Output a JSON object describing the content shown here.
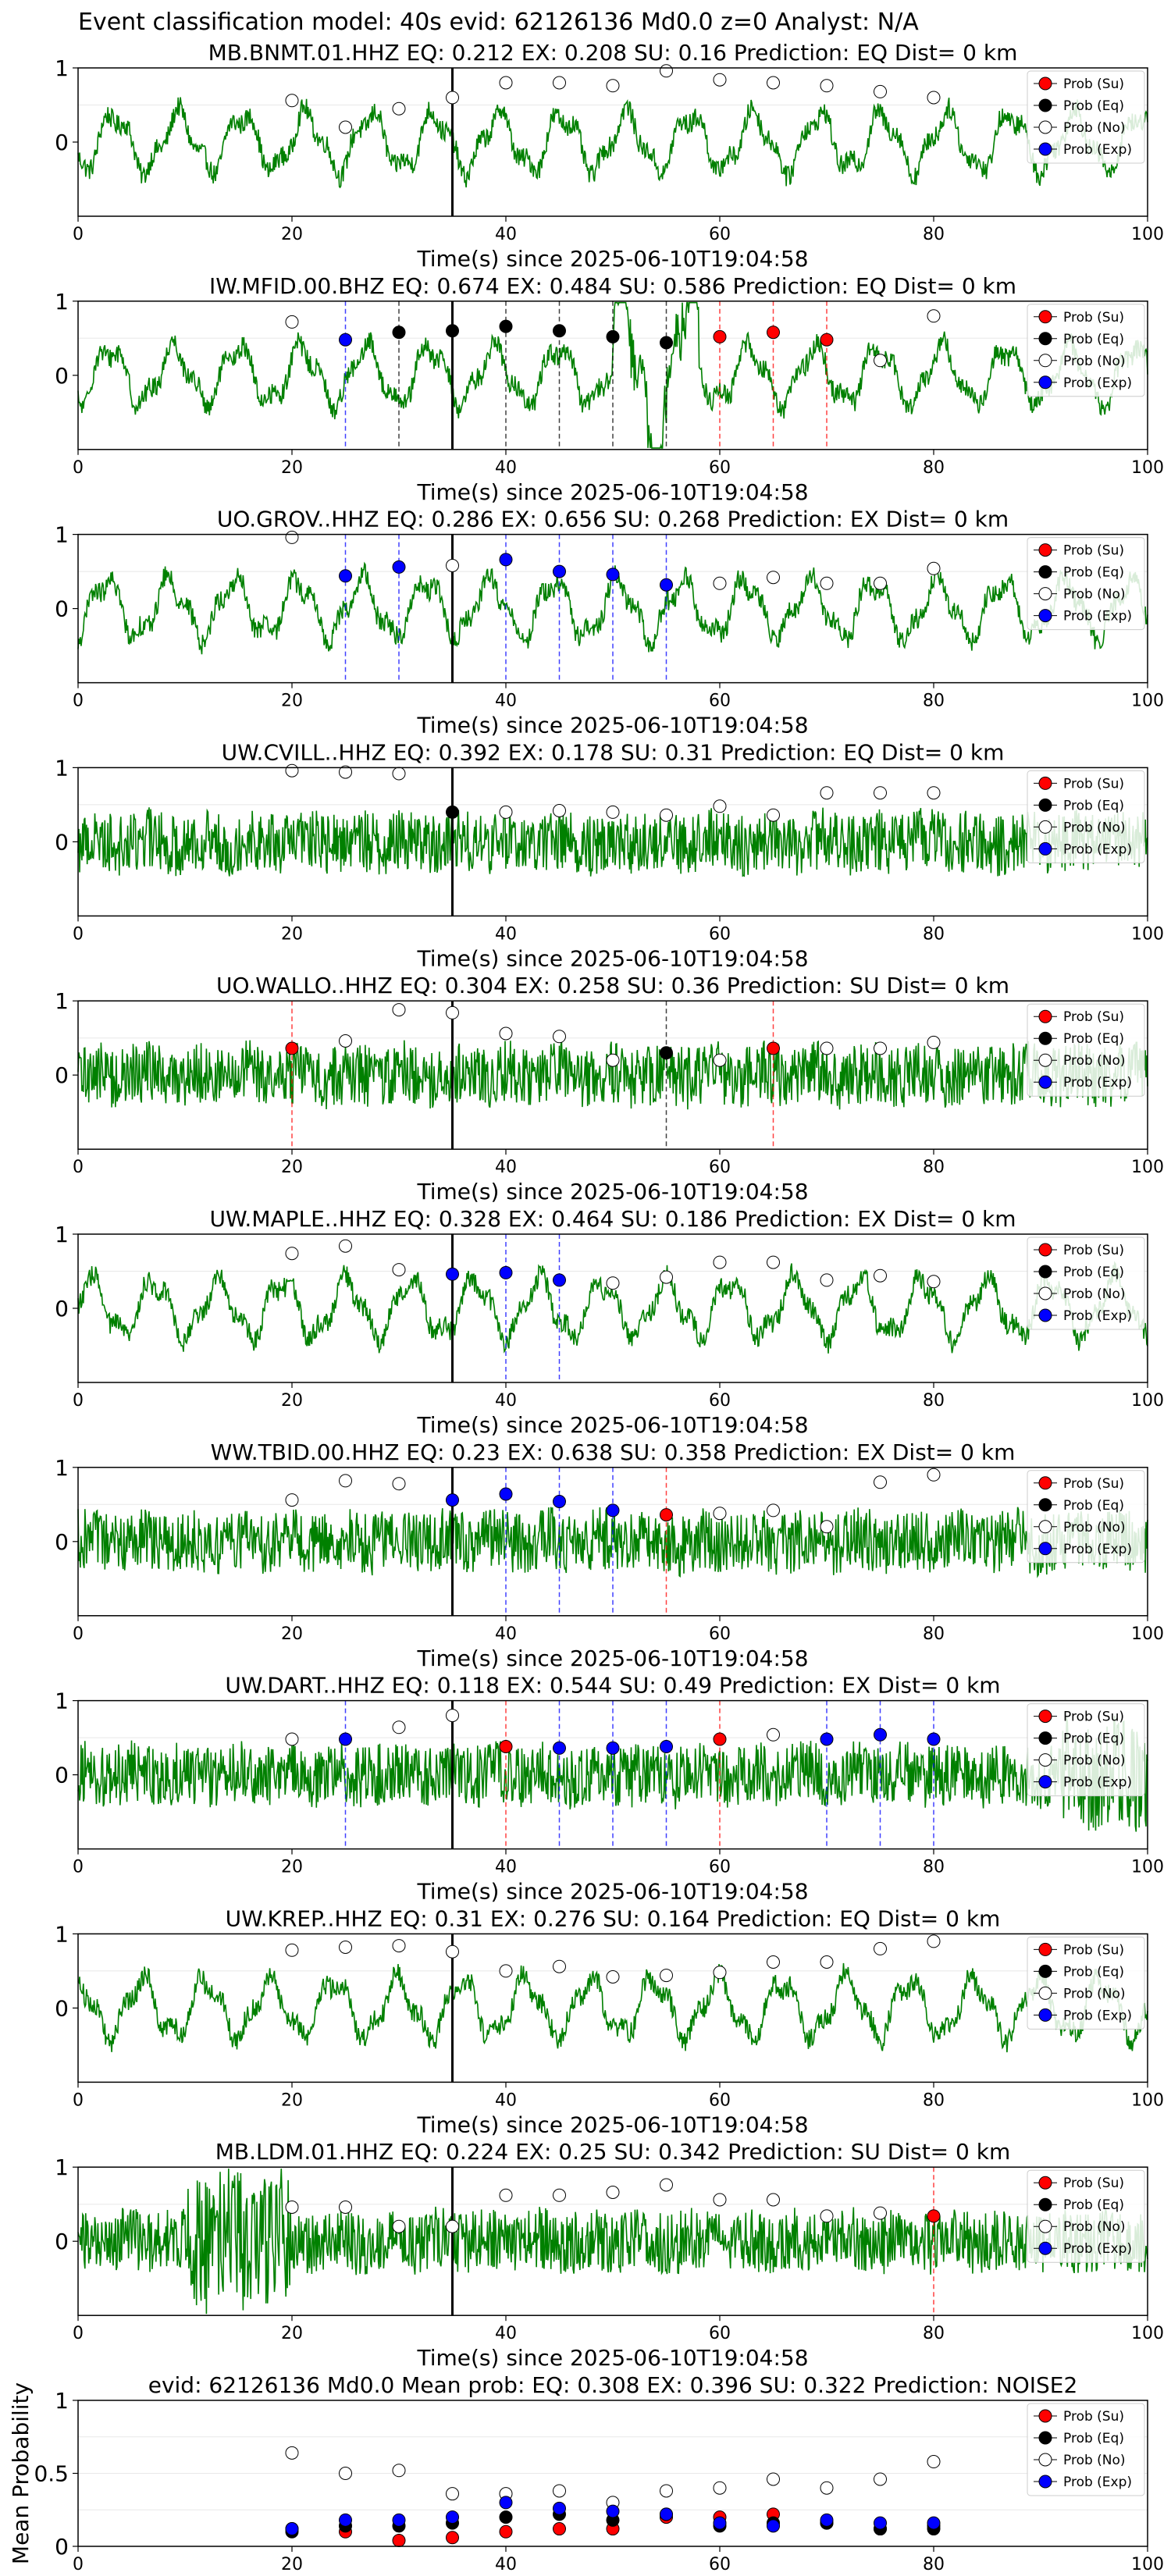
{
  "suptitle": "Event classification model: 40s evid: 62126136 Md0.0 z=0 Analyst: N/A",
  "colors": {
    "waveform": "#008000",
    "prob_su": "#ff0000",
    "prob_eq": "#000000",
    "prob_no": "#ffffff",
    "prob_exp": "#0000ff",
    "event_line": "#000000"
  },
  "legend": [
    "Prob (Su)",
    "Prob (Eq)",
    "Prob (No)",
    "Prob (Exp)"
  ],
  "chart_data": [
    {
      "type": "line",
      "title": "MB.BNMT.01.HHZ   EQ: 0.212  EX: 0.208  SU: 0.16   Prediction: EQ    Dist= 0 km",
      "xlabel": "Time(s) since 2025-06-10T19:04:58",
      "xlim": [
        0,
        100
      ],
      "ylim": [
        -1,
        1
      ],
      "xticks": [
        0,
        20,
        40,
        60,
        80,
        100
      ],
      "yticks": [
        0,
        1
      ],
      "grid": true,
      "legend_position": "top-right",
      "waveform": "green-waveform",
      "event_line_x": 35,
      "markers": {
        "x": [
          20,
          25,
          30,
          35,
          40,
          45,
          50,
          55,
          60,
          65,
          70,
          75,
          80
        ],
        "class": [
          "No",
          "No",
          "No",
          "No",
          "No",
          "No",
          "No",
          "No",
          "No",
          "No",
          "No",
          "No",
          "No"
        ],
        "y": [
          0.56,
          0.2,
          0.45,
          0.6,
          0.8,
          0.8,
          0.76,
          0.96,
          0.84,
          0.8,
          0.76,
          0.68,
          0.6
        ]
      },
      "dashed_lines": []
    },
    {
      "type": "line",
      "title": "IW.MFID.00.BHZ   EQ: 0.674  EX: 0.484  SU: 0.586   Prediction: EQ    Dist= 0 km",
      "xlabel": "Time(s) since 2025-06-10T19:04:58",
      "xlim": [
        0,
        100
      ],
      "ylim": [
        -1,
        1
      ],
      "xticks": [
        0,
        20,
        40,
        60,
        80,
        100
      ],
      "yticks": [
        0,
        1
      ],
      "grid": true,
      "legend_position": "top-right",
      "waveform": "green-waveform",
      "event_line_x": 35,
      "markers": {
        "x": [
          20,
          25,
          30,
          35,
          40,
          45,
          50,
          55,
          60,
          65,
          70,
          75,
          80
        ],
        "class": [
          "No",
          "Exp",
          "Eq",
          "Eq",
          "Eq",
          "Eq",
          "Eq",
          "Eq",
          "Su",
          "Su",
          "Su",
          "No",
          "No"
        ],
        "y": [
          0.72,
          0.48,
          0.58,
          0.6,
          0.66,
          0.6,
          0.52,
          0.44,
          0.52,
          0.58,
          0.48,
          0.2,
          0.8
        ]
      },
      "dashed_lines": [
        {
          "x": 25,
          "class": "Exp"
        },
        {
          "x": 30,
          "class": "Eq"
        },
        {
          "x": 40,
          "class": "Eq"
        },
        {
          "x": 45,
          "class": "Eq"
        },
        {
          "x": 50,
          "class": "Eq"
        },
        {
          "x": 55,
          "class": "Eq"
        },
        {
          "x": 60,
          "class": "Su"
        },
        {
          "x": 65,
          "class": "Su"
        },
        {
          "x": 70,
          "class": "Su"
        }
      ]
    },
    {
      "type": "line",
      "title": "UO.GROV..HHZ   EQ: 0.286  EX: 0.656  SU: 0.268   Prediction: EX    Dist= 0 km",
      "xlabel": "Time(s) since 2025-06-10T19:04:58",
      "xlim": [
        0,
        100
      ],
      "ylim": [
        -1,
        1
      ],
      "xticks": [
        0,
        20,
        40,
        60,
        80,
        100
      ],
      "yticks": [
        0,
        1
      ],
      "grid": true,
      "legend_position": "top-right",
      "waveform": "green-waveform",
      "event_line_x": 35,
      "markers": {
        "x": [
          20,
          25,
          30,
          35,
          40,
          45,
          50,
          55,
          60,
          65,
          70,
          75,
          80
        ],
        "class": [
          "No",
          "Exp",
          "Exp",
          "No",
          "Exp",
          "Exp",
          "Exp",
          "Exp",
          "No",
          "No",
          "No",
          "No",
          "No"
        ],
        "y": [
          0.96,
          0.44,
          0.56,
          0.58,
          0.66,
          0.5,
          0.46,
          0.32,
          0.34,
          0.42,
          0.34,
          0.34,
          0.54
        ]
      },
      "dashed_lines": [
        {
          "x": 25,
          "class": "Exp"
        },
        {
          "x": 30,
          "class": "Exp"
        },
        {
          "x": 40,
          "class": "Exp"
        },
        {
          "x": 45,
          "class": "Exp"
        },
        {
          "x": 50,
          "class": "Exp"
        },
        {
          "x": 55,
          "class": "Exp"
        }
      ]
    },
    {
      "type": "line",
      "title": "UW.CVILL..HHZ   EQ: 0.392  EX: 0.178  SU: 0.31   Prediction: EQ    Dist= 0 km",
      "xlabel": "Time(s) since 2025-06-10T19:04:58",
      "xlim": [
        0,
        100
      ],
      "ylim": [
        -1,
        1
      ],
      "xticks": [
        0,
        20,
        40,
        60,
        80,
        100
      ],
      "yticks": [
        0,
        1
      ],
      "grid": true,
      "legend_position": "top-right",
      "waveform": "green-waveform",
      "event_line_x": 35,
      "markers": {
        "x": [
          20,
          25,
          30,
          35,
          40,
          45,
          50,
          55,
          60,
          65,
          70,
          75,
          80
        ],
        "class": [
          "No",
          "No",
          "No",
          "Eq",
          "No",
          "No",
          "No",
          "No",
          "No",
          "No",
          "No",
          "No",
          "No"
        ],
        "y": [
          0.96,
          0.94,
          0.92,
          0.4,
          0.4,
          0.42,
          0.4,
          0.36,
          0.48,
          0.36,
          0.66,
          0.66,
          0.66
        ]
      },
      "dashed_lines": []
    },
    {
      "type": "line",
      "title": "UO.WALLO..HHZ   EQ: 0.304  EX: 0.258  SU: 0.36   Prediction: SU    Dist= 0 km",
      "xlabel": "Time(s) since 2025-06-10T19:04:58",
      "xlim": [
        0,
        100
      ],
      "ylim": [
        -1,
        1
      ],
      "xticks": [
        0,
        20,
        40,
        60,
        80,
        100
      ],
      "yticks": [
        0,
        1
      ],
      "grid": true,
      "legend_position": "top-right",
      "waveform": "green-waveform",
      "event_line_x": 35,
      "markers": {
        "x": [
          20,
          25,
          30,
          35,
          40,
          45,
          50,
          55,
          60,
          65,
          70,
          75,
          80
        ],
        "class": [
          "Su",
          "No",
          "No",
          "No",
          "No",
          "No",
          "No",
          "Eq",
          "No",
          "Su",
          "No",
          "No",
          "No"
        ],
        "y": [
          0.36,
          0.46,
          0.88,
          0.84,
          0.56,
          0.52,
          0.2,
          0.3,
          0.2,
          0.36,
          0.36,
          0.36,
          0.44
        ]
      },
      "dashed_lines": [
        {
          "x": 20,
          "class": "Su"
        },
        {
          "x": 55,
          "class": "Eq"
        },
        {
          "x": 65,
          "class": "Su"
        }
      ]
    },
    {
      "type": "line",
      "title": "UW.MAPLE..HHZ   EQ: 0.328  EX: 0.464  SU: 0.186   Prediction: EX    Dist= 0 km",
      "xlabel": "Time(s) since 2025-06-10T19:04:58",
      "xlim": [
        0,
        100
      ],
      "ylim": [
        -1,
        1
      ],
      "xticks": [
        0,
        20,
        40,
        60,
        80,
        100
      ],
      "yticks": [
        0,
        1
      ],
      "grid": true,
      "legend_position": "top-right",
      "waveform": "green-waveform",
      "event_line_x": 35,
      "markers": {
        "x": [
          20,
          25,
          30,
          35,
          40,
          45,
          50,
          55,
          60,
          65,
          70,
          75,
          80
        ],
        "class": [
          "No",
          "No",
          "No",
          "Exp",
          "Exp",
          "Exp",
          "No",
          "No",
          "No",
          "No",
          "No",
          "No",
          "No"
        ],
        "y": [
          0.74,
          0.84,
          0.52,
          0.46,
          0.48,
          0.38,
          0.34,
          0.42,
          0.62,
          0.62,
          0.38,
          0.44,
          0.36
        ]
      },
      "dashed_lines": [
        {
          "x": 40,
          "class": "Exp"
        },
        {
          "x": 45,
          "class": "Exp"
        }
      ]
    },
    {
      "type": "line",
      "title": "WW.TBID.00.HHZ   EQ: 0.23  EX: 0.638  SU: 0.358   Prediction: EX    Dist= 0 km",
      "xlabel": "Time(s) since 2025-06-10T19:04:58",
      "xlim": [
        0,
        100
      ],
      "ylim": [
        -1,
        1
      ],
      "xticks": [
        0,
        20,
        40,
        60,
        80,
        100
      ],
      "yticks": [
        0,
        1
      ],
      "grid": true,
      "legend_position": "top-right",
      "waveform": "green-waveform",
      "event_line_x": 35,
      "markers": {
        "x": [
          20,
          25,
          30,
          35,
          40,
          45,
          50,
          55,
          60,
          65,
          70,
          75,
          80
        ],
        "class": [
          "No",
          "No",
          "No",
          "Exp",
          "Exp",
          "Exp",
          "Exp",
          "Su",
          "No",
          "No",
          "No",
          "No",
          "No"
        ],
        "y": [
          0.56,
          0.82,
          0.78,
          0.56,
          0.64,
          0.54,
          0.42,
          0.36,
          0.38,
          0.42,
          0.2,
          0.8,
          0.9
        ]
      },
      "dashed_lines": [
        {
          "x": 40,
          "class": "Exp"
        },
        {
          "x": 45,
          "class": "Exp"
        },
        {
          "x": 50,
          "class": "Exp"
        },
        {
          "x": 55,
          "class": "Su"
        }
      ]
    },
    {
      "type": "line",
      "title": "UW.DART..HHZ   EQ: 0.118  EX: 0.544  SU: 0.49   Prediction: EX    Dist= 0 km",
      "xlabel": "Time(s) since 2025-06-10T19:04:58",
      "xlim": [
        0,
        100
      ],
      "ylim": [
        -1,
        1
      ],
      "xticks": [
        0,
        20,
        40,
        60,
        80,
        100
      ],
      "yticks": [
        0,
        1
      ],
      "grid": true,
      "legend_position": "top-right",
      "waveform": "green-waveform",
      "event_line_x": 35,
      "markers": {
        "x": [
          20,
          25,
          30,
          35,
          40,
          45,
          50,
          55,
          60,
          65,
          70,
          75,
          80
        ],
        "class": [
          "No",
          "Exp",
          "No",
          "No",
          "Su",
          "Exp",
          "Exp",
          "Exp",
          "Su",
          "No",
          "Exp",
          "Exp",
          "Exp"
        ],
        "y": [
          0.48,
          0.48,
          0.64,
          0.8,
          0.38,
          0.36,
          0.36,
          0.38,
          0.48,
          0.54,
          0.48,
          0.54,
          0.48
        ]
      },
      "dashed_lines": [
        {
          "x": 25,
          "class": "Exp"
        },
        {
          "x": 40,
          "class": "Su"
        },
        {
          "x": 45,
          "class": "Exp"
        },
        {
          "x": 50,
          "class": "Exp"
        },
        {
          "x": 55,
          "class": "Exp"
        },
        {
          "x": 60,
          "class": "Su"
        },
        {
          "x": 70,
          "class": "Exp"
        },
        {
          "x": 75,
          "class": "Exp"
        },
        {
          "x": 80,
          "class": "Exp"
        }
      ]
    },
    {
      "type": "line",
      "title": "UW.KREP..HHZ   EQ: 0.31  EX: 0.276  SU: 0.164   Prediction: EQ    Dist= 0 km",
      "xlabel": "Time(s) since 2025-06-10T19:04:58",
      "xlim": [
        0,
        100
      ],
      "ylim": [
        -1,
        1
      ],
      "xticks": [
        0,
        20,
        40,
        60,
        80,
        100
      ],
      "yticks": [
        0,
        1
      ],
      "grid": true,
      "legend_position": "top-right",
      "waveform": "green-waveform",
      "event_line_x": 35,
      "markers": {
        "x": [
          20,
          25,
          30,
          35,
          40,
          45,
          50,
          55,
          60,
          65,
          70,
          75,
          80
        ],
        "class": [
          "No",
          "No",
          "No",
          "No",
          "No",
          "No",
          "No",
          "No",
          "No",
          "No",
          "No",
          "No",
          "No"
        ],
        "y": [
          0.78,
          0.82,
          0.84,
          0.76,
          0.5,
          0.56,
          0.42,
          0.44,
          0.48,
          0.62,
          0.62,
          0.8,
          0.9
        ]
      },
      "dashed_lines": []
    },
    {
      "type": "line",
      "title": "MB.LDM.01.HHZ   EQ: 0.224  EX: 0.25  SU: 0.342   Prediction: SU    Dist= 0 km",
      "xlabel": "Time(s) since 2025-06-10T19:04:58",
      "xlim": [
        0,
        100
      ],
      "ylim": [
        -1,
        1
      ],
      "xticks": [
        0,
        20,
        40,
        60,
        80,
        100
      ],
      "yticks": [
        0,
        1
      ],
      "grid": true,
      "legend_position": "top-right",
      "waveform": "green-waveform",
      "event_line_x": 35,
      "markers": {
        "x": [
          20,
          25,
          30,
          35,
          40,
          45,
          50,
          55,
          60,
          65,
          70,
          75,
          80
        ],
        "class": [
          "No",
          "No",
          "No",
          "No",
          "No",
          "No",
          "No",
          "No",
          "No",
          "No",
          "No",
          "No",
          "Su"
        ],
        "y": [
          0.46,
          0.46,
          0.2,
          0.2,
          0.62,
          0.62,
          0.66,
          0.76,
          0.56,
          0.56,
          0.34,
          0.38,
          0.34
        ]
      },
      "dashed_lines": [
        {
          "x": 80,
          "class": "Su"
        }
      ]
    },
    {
      "type": "scatter",
      "title": "evid: 62126136   Md0.0   Mean prob:   EQ: 0.308  EX: 0.396  SU: 0.322   Prediction: NOISE2",
      "xlabel": "",
      "ylabel": "Mean Probability",
      "xlim": [
        0,
        100
      ],
      "ylim": [
        0,
        1
      ],
      "xticks": [
        0,
        20,
        40,
        60,
        80,
        100
      ],
      "yticks": [
        0.0,
        0.5,
        1.0
      ],
      "grid": true,
      "legend_position": "top-right",
      "x": [
        20,
        25,
        30,
        35,
        40,
        45,
        50,
        55,
        60,
        65,
        70,
        75,
        80
      ],
      "series": [
        {
          "name": "Prob (Su)",
          "class": "Su",
          "values": [
            0.12,
            0.1,
            0.04,
            0.06,
            0.1,
            0.12,
            0.12,
            0.2,
            0.2,
            0.22,
            0.16,
            0.12,
            0.14
          ]
        },
        {
          "name": "Prob (Eq)",
          "class": "Eq",
          "values": [
            0.1,
            0.14,
            0.14,
            0.16,
            0.2,
            0.22,
            0.18,
            0.22,
            0.14,
            0.16,
            0.16,
            0.12,
            0.12
          ]
        },
        {
          "name": "Prob (No)",
          "class": "No",
          "values": [
            0.64,
            0.5,
            0.52,
            0.36,
            0.36,
            0.38,
            0.3,
            0.38,
            0.4,
            0.46,
            0.4,
            0.46,
            0.58
          ]
        },
        {
          "name": "Prob (Exp)",
          "class": "Exp",
          "values": [
            0.12,
            0.18,
            0.18,
            0.2,
            0.3,
            0.26,
            0.24,
            0.22,
            0.16,
            0.14,
            0.18,
            0.16,
            0.16
          ]
        }
      ]
    }
  ]
}
